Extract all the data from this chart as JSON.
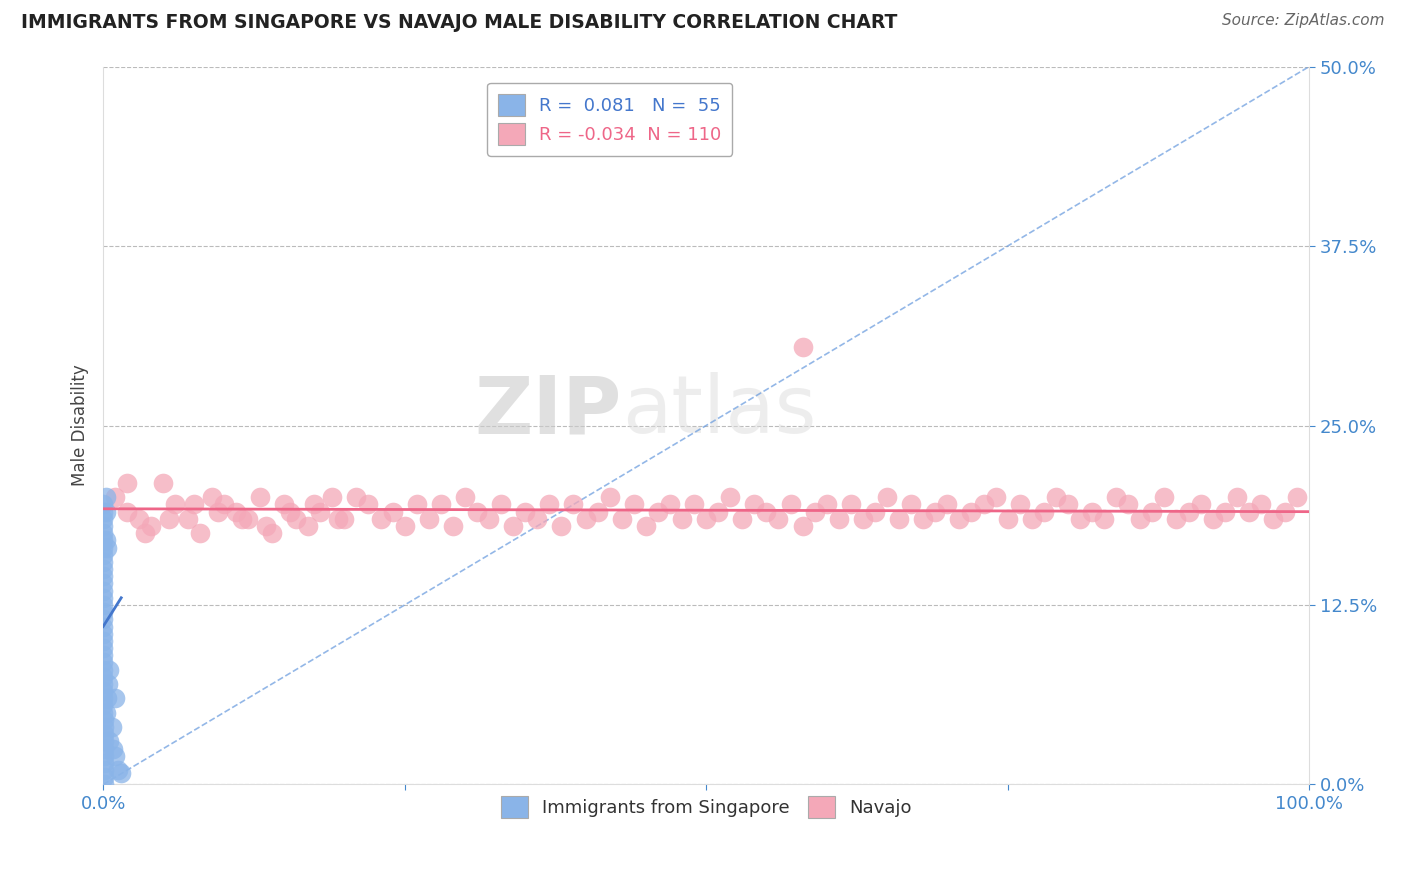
{
  "title": "IMMIGRANTS FROM SINGAPORE VS NAVAJO MALE DISABILITY CORRELATION CHART",
  "source": "Source: ZipAtlas.com",
  "xlabel_label": "Immigrants from Singapore",
  "xlabel_label2": "Navajo",
  "ylabel": "Male Disability",
  "xlim": [
    0,
    1.0
  ],
  "ylim": [
    0,
    0.5
  ],
  "ytick_labels": [
    "0.0%",
    "12.5%",
    "25.0%",
    "37.5%",
    "50.0%"
  ],
  "ytick_positions": [
    0.0,
    0.125,
    0.25,
    0.375,
    0.5
  ],
  "r_blue": 0.081,
  "n_blue": 55,
  "r_pink": -0.034,
  "n_pink": 110,
  "blue_color": "#8ab4e8",
  "pink_color": "#f4a8b8",
  "blue_line_color": "#4477cc",
  "pink_line_color": "#ee6688",
  "watermark_zip": "ZIP",
  "watermark_atlas": "atlas",
  "blue_scatter_x": [
    0.0,
    0.0,
    0.0,
    0.0,
    0.0,
    0.0,
    0.0,
    0.0,
    0.0,
    0.0,
    0.0,
    0.0,
    0.0,
    0.0,
    0.0,
    0.0,
    0.0,
    0.0,
    0.0,
    0.0,
    0.0,
    0.0,
    0.0,
    0.0,
    0.0,
    0.0,
    0.0,
    0.0,
    0.0,
    0.0,
    0.001,
    0.001,
    0.001,
    0.001,
    0.001,
    0.001,
    0.001,
    0.001,
    0.001,
    0.001,
    0.002,
    0.002,
    0.002,
    0.002,
    0.003,
    0.003,
    0.004,
    0.005,
    0.005,
    0.007,
    0.008,
    0.01,
    0.01,
    0.012,
    0.015
  ],
  "blue_scatter_y": [
    0.195,
    0.19,
    0.185,
    0.18,
    0.175,
    0.17,
    0.165,
    0.16,
    0.155,
    0.15,
    0.145,
    0.14,
    0.135,
    0.13,
    0.125,
    0.12,
    0.115,
    0.11,
    0.105,
    0.1,
    0.095,
    0.09,
    0.085,
    0.08,
    0.075,
    0.07,
    0.065,
    0.06,
    0.055,
    0.05,
    0.045,
    0.04,
    0.035,
    0.03,
    0.025,
    0.02,
    0.015,
    0.01,
    0.005,
    0.0,
    0.2,
    0.19,
    0.17,
    0.05,
    0.165,
    0.06,
    0.07,
    0.08,
    0.03,
    0.04,
    0.025,
    0.02,
    0.06,
    0.01,
    0.008
  ],
  "pink_scatter_x": [
    0.01,
    0.02,
    0.03,
    0.04,
    0.05,
    0.06,
    0.07,
    0.08,
    0.09,
    0.1,
    0.11,
    0.12,
    0.13,
    0.14,
    0.15,
    0.16,
    0.17,
    0.18,
    0.19,
    0.2,
    0.21,
    0.22,
    0.23,
    0.24,
    0.25,
    0.26,
    0.27,
    0.28,
    0.29,
    0.3,
    0.31,
    0.32,
    0.33,
    0.34,
    0.35,
    0.36,
    0.37,
    0.38,
    0.39,
    0.4,
    0.41,
    0.42,
    0.43,
    0.44,
    0.45,
    0.46,
    0.47,
    0.48,
    0.49,
    0.5,
    0.51,
    0.52,
    0.53,
    0.54,
    0.55,
    0.56,
    0.57,
    0.58,
    0.59,
    0.6,
    0.61,
    0.62,
    0.63,
    0.64,
    0.65,
    0.66,
    0.67,
    0.68,
    0.69,
    0.7,
    0.71,
    0.72,
    0.73,
    0.74,
    0.75,
    0.76,
    0.77,
    0.78,
    0.79,
    0.8,
    0.81,
    0.82,
    0.83,
    0.84,
    0.85,
    0.86,
    0.87,
    0.88,
    0.89,
    0.9,
    0.91,
    0.92,
    0.93,
    0.94,
    0.95,
    0.96,
    0.97,
    0.98,
    0.99,
    0.02,
    0.035,
    0.055,
    0.075,
    0.095,
    0.115,
    0.135,
    0.155,
    0.175,
    0.195,
    0.58
  ],
  "pink_scatter_y": [
    0.2,
    0.19,
    0.185,
    0.18,
    0.21,
    0.195,
    0.185,
    0.175,
    0.2,
    0.195,
    0.19,
    0.185,
    0.2,
    0.175,
    0.195,
    0.185,
    0.18,
    0.19,
    0.2,
    0.185,
    0.2,
    0.195,
    0.185,
    0.19,
    0.18,
    0.195,
    0.185,
    0.195,
    0.18,
    0.2,
    0.19,
    0.185,
    0.195,
    0.18,
    0.19,
    0.185,
    0.195,
    0.18,
    0.195,
    0.185,
    0.19,
    0.2,
    0.185,
    0.195,
    0.18,
    0.19,
    0.195,
    0.185,
    0.195,
    0.185,
    0.19,
    0.2,
    0.185,
    0.195,
    0.19,
    0.185,
    0.195,
    0.18,
    0.19,
    0.195,
    0.185,
    0.195,
    0.185,
    0.19,
    0.2,
    0.185,
    0.195,
    0.185,
    0.19,
    0.195,
    0.185,
    0.19,
    0.195,
    0.2,
    0.185,
    0.195,
    0.185,
    0.19,
    0.2,
    0.195,
    0.185,
    0.19,
    0.185,
    0.2,
    0.195,
    0.185,
    0.19,
    0.2,
    0.185,
    0.19,
    0.195,
    0.185,
    0.19,
    0.2,
    0.19,
    0.195,
    0.185,
    0.19,
    0.2,
    0.21,
    0.175,
    0.185,
    0.195,
    0.19,
    0.185,
    0.18,
    0.19,
    0.195,
    0.185,
    0.305
  ],
  "blue_trend_x": [
    0.0,
    0.015
  ],
  "blue_trend_y_start": 0.11,
  "blue_trend_y_end": 0.13,
  "pink_trend_y": 0.192,
  "pink_trend_slope": -0.002
}
